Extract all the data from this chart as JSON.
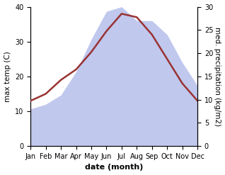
{
  "months": [
    "Jan",
    "Feb",
    "Mar",
    "Apr",
    "May",
    "Jun",
    "Jul",
    "Aug",
    "Sep",
    "Oct",
    "Nov",
    "Dec"
  ],
  "temperature": [
    13,
    15,
    19,
    22,
    27,
    33,
    38,
    37,
    32,
    25,
    18,
    13
  ],
  "precipitation": [
    8,
    9,
    11,
    16,
    23,
    29,
    30,
    27,
    27,
    24,
    18,
    13
  ],
  "temp_color": "#993333",
  "precip_fill_color": "#c0c8ee",
  "temp_ylim": [
    0,
    40
  ],
  "precip_ylim": [
    0,
    30
  ],
  "temp_yticks": [
    0,
    10,
    20,
    30,
    40
  ],
  "precip_yticks": [
    0,
    5,
    10,
    15,
    20,
    25,
    30
  ],
  "ylabel_left": "max temp (C)",
  "ylabel_right": "med. precipitation (kg/m2)",
  "xlabel": "date (month)",
  "xlabel_fontsize": 8,
  "ylabel_fontsize": 7.5,
  "tick_fontsize": 7,
  "background_color": "#ffffff"
}
